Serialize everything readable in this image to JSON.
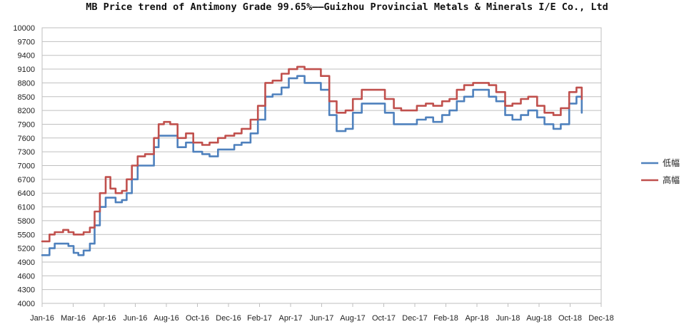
{
  "chart_data": {
    "type": "line",
    "title": "MB Price trend of Antimony Grade 99.65%——Guizhou Provincial Metals & Minerals I/E Co., Ltd",
    "xlabel": "",
    "ylabel": "",
    "ylim": [
      4000,
      10000
    ],
    "yticks": [
      4000,
      4300,
      4600,
      4900,
      5200,
      5500,
      5800,
      6100,
      6400,
      6700,
      7000,
      7300,
      7600,
      7900,
      8200,
      8500,
      8800,
      9100,
      9400,
      9700,
      10000
    ],
    "xlim": [
      "2016-01-01",
      "2018-12-01"
    ],
    "xticks": [
      "Jan-16",
      "Mar-16",
      "Apr-16",
      "Jun-16",
      "Aug-16",
      "Oct-16",
      "Dec-16",
      "Feb-17",
      "Apr-17",
      "Jun-17",
      "Aug-17",
      "Oct-17",
      "Dec-17",
      "Feb-18",
      "Apr-18",
      "Jun-18",
      "Aug-18",
      "Oct-18",
      "Dec-18"
    ],
    "grid": true,
    "legend": "right",
    "series": [
      {
        "name": "低幅",
        "color": "#4f81bd",
        "x": [
          "2016-01-01",
          "2016-01-15",
          "2016-01-25",
          "2016-02-01",
          "2016-02-10",
          "2016-02-20",
          "2016-03-01",
          "2016-03-10",
          "2016-03-20",
          "2016-04-01",
          "2016-04-10",
          "2016-04-20",
          "2016-05-01",
          "2016-05-10",
          "2016-05-20",
          "2016-06-01",
          "2016-06-10",
          "2016-06-20",
          "2016-07-01",
          "2016-07-15",
          "2016-08-01",
          "2016-08-10",
          "2016-08-20",
          "2016-09-01",
          "2016-09-15",
          "2016-10-01",
          "2016-10-15",
          "2016-11-01",
          "2016-11-15",
          "2016-12-01",
          "2016-12-15",
          "2017-01-01",
          "2017-01-15",
          "2017-02-01",
          "2017-02-15",
          "2017-03-01",
          "2017-03-15",
          "2017-04-01",
          "2017-04-15",
          "2017-05-01",
          "2017-05-15",
          "2017-06-01",
          "2017-06-15",
          "2017-07-01",
          "2017-07-15",
          "2017-08-01",
          "2017-08-15",
          "2017-09-01",
          "2017-09-15",
          "2017-10-01",
          "2017-10-15",
          "2017-11-01",
          "2017-11-15",
          "2017-12-01",
          "2017-12-15",
          "2018-01-01",
          "2018-01-15",
          "2018-02-01",
          "2018-02-15",
          "2018-03-01",
          "2018-03-15",
          "2018-04-01",
          "2018-04-15",
          "2018-05-01",
          "2018-05-15",
          "2018-06-01",
          "2018-06-15",
          "2018-07-01",
          "2018-07-15",
          "2018-08-01",
          "2018-08-15",
          "2018-09-01",
          "2018-09-15",
          "2018-10-01",
          "2018-10-15",
          "2018-10-25"
        ],
        "values": [
          5050,
          5200,
          5300,
          5300,
          5300,
          5250,
          5100,
          5050,
          5150,
          5300,
          5700,
          6100,
          6300,
          6300,
          6200,
          6250,
          6400,
          6700,
          7000,
          7000,
          7400,
          7650,
          7650,
          7650,
          7400,
          7500,
          7300,
          7250,
          7200,
          7350,
          7350,
          7450,
          7500,
          7700,
          8000,
          8500,
          8550,
          8700,
          8900,
          8950,
          8800,
          8800,
          8650,
          8100,
          7750,
          7800,
          8150,
          8350,
          8350,
          8350,
          8150,
          7900,
          7900,
          7900,
          8000,
          8050,
          7950,
          8100,
          8200,
          8400,
          8500,
          8650,
          8650,
          8500,
          8400,
          8100,
          8000,
          8100,
          8200,
          8050,
          7900,
          7800,
          7900,
          8350,
          8500,
          8150
        ]
      },
      {
        "name": "高幅",
        "color": "#c0504d",
        "x": [
          "2016-01-01",
          "2016-01-15",
          "2016-01-25",
          "2016-02-01",
          "2016-02-10",
          "2016-02-20",
          "2016-03-01",
          "2016-03-10",
          "2016-03-20",
          "2016-04-01",
          "2016-04-10",
          "2016-04-20",
          "2016-05-01",
          "2016-05-10",
          "2016-05-20",
          "2016-06-01",
          "2016-06-10",
          "2016-06-20",
          "2016-07-01",
          "2016-07-15",
          "2016-08-01",
          "2016-08-10",
          "2016-08-20",
          "2016-09-01",
          "2016-09-15",
          "2016-10-01",
          "2016-10-15",
          "2016-11-01",
          "2016-11-15",
          "2016-12-01",
          "2016-12-15",
          "2017-01-01",
          "2017-01-15",
          "2017-02-01",
          "2017-02-15",
          "2017-03-01",
          "2017-03-15",
          "2017-04-01",
          "2017-04-15",
          "2017-05-01",
          "2017-05-15",
          "2017-06-01",
          "2017-06-15",
          "2017-07-01",
          "2017-07-15",
          "2017-08-01",
          "2017-08-15",
          "2017-09-01",
          "2017-09-15",
          "2017-10-01",
          "2017-10-15",
          "2017-11-01",
          "2017-11-15",
          "2017-12-01",
          "2017-12-15",
          "2018-01-01",
          "2018-01-15",
          "2018-02-01",
          "2018-02-15",
          "2018-03-01",
          "2018-03-15",
          "2018-04-01",
          "2018-04-15",
          "2018-05-01",
          "2018-05-15",
          "2018-06-01",
          "2018-06-15",
          "2018-07-01",
          "2018-07-15",
          "2018-08-01",
          "2018-08-15",
          "2018-09-01",
          "2018-09-15",
          "2018-10-01",
          "2018-10-15",
          "2018-10-25"
        ],
        "values": [
          5350,
          5500,
          5550,
          5550,
          5600,
          5550,
          5500,
          5500,
          5550,
          5650,
          6000,
          6400,
          6750,
          6500,
          6400,
          6450,
          6700,
          7000,
          7200,
          7250,
          7600,
          7900,
          7950,
          7900,
          7600,
          7700,
          7500,
          7450,
          7500,
          7600,
          7650,
          7700,
          7800,
          8000,
          8300,
          8800,
          8850,
          9000,
          9100,
          9150,
          9100,
          9100,
          8950,
          8400,
          8150,
          8200,
          8450,
          8650,
          8650,
          8650,
          8450,
          8250,
          8200,
          8200,
          8300,
          8350,
          8300,
          8400,
          8450,
          8650,
          8750,
          8800,
          8800,
          8750,
          8600,
          8300,
          8350,
          8450,
          8500,
          8300,
          8150,
          8100,
          8250,
          8600,
          8700,
          8450
        ]
      }
    ]
  }
}
